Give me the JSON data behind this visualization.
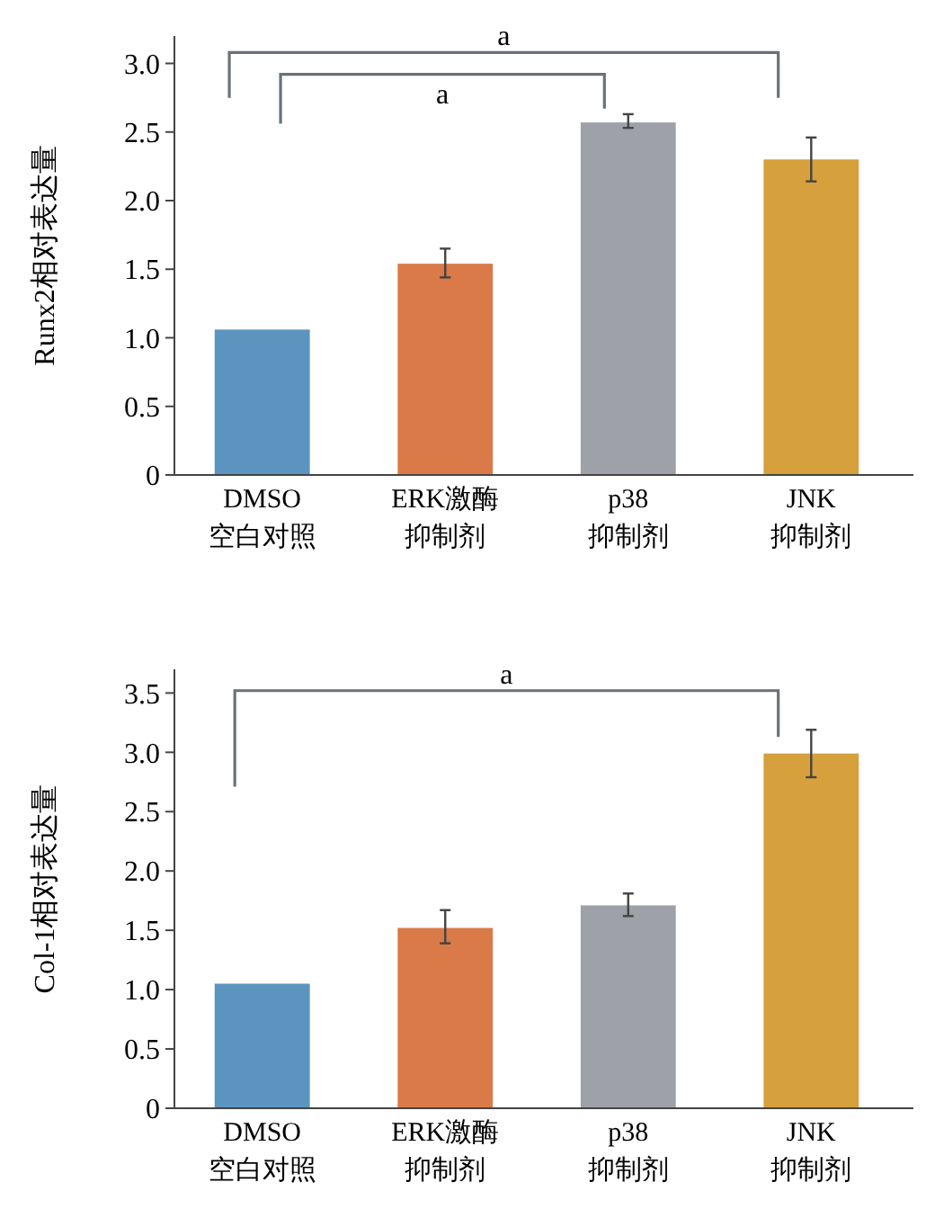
{
  "chart_data": [
    {
      "type": "bar",
      "ylabel": "Runx2相对表达量",
      "categories": [
        "DMSO\n空白对照",
        "ERK激酶抑制剂",
        "p38\n抑制剂",
        "JNK\n抑制剂"
      ],
      "values": [
        1.06,
        1.54,
        2.57,
        2.3
      ],
      "colors": [
        "#5b95bf",
        "#d97a48",
        "#9ea2a8",
        "#d6a03c"
      ],
      "errors": [
        null,
        [
          1.44,
          1.65
        ],
        [
          2.53,
          2.63
        ],
        [
          2.14,
          2.46
        ]
      ],
      "ylim": [
        0,
        3.2
      ],
      "yticks": [
        0,
        0.5,
        {
          "value": 1,
          "label": "1.0"
        },
        1.5,
        {
          "value": 2,
          "label": "2.0"
        },
        2.5,
        {
          "value": 3,
          "label": "3.0"
        }
      ],
      "annotations": [
        "a",
        "a"
      ],
      "grid": false
    },
    {
      "type": "bar",
      "ylabel": "Col-1相对表达量",
      "categories": [
        "DMSO\n空白对照",
        "ERK激酶抑制剂",
        "p38\n抑制剂",
        "JNK\n抑制剂"
      ],
      "values": [
        1.05,
        1.52,
        1.71,
        2.99
      ],
      "colors": [
        "#5b95bf",
        "#d97a48",
        "#9ea2a8",
        "#d6a03c"
      ],
      "errors": [
        null,
        [
          1.39,
          1.67
        ],
        [
          1.62,
          1.81
        ],
        [
          2.79,
          3.19
        ]
      ],
      "ylim": [
        0,
        3.7
      ],
      "yticks": [
        0,
        0.5,
        {
          "value": 1,
          "label": "1.0"
        },
        1.5,
        {
          "value": 2,
          "label": "2.0"
        },
        2.5,
        {
          "value": 3,
          "label": "3.0"
        },
        3.5
      ],
      "annotations": [
        "a"
      ],
      "grid": false
    }
  ]
}
